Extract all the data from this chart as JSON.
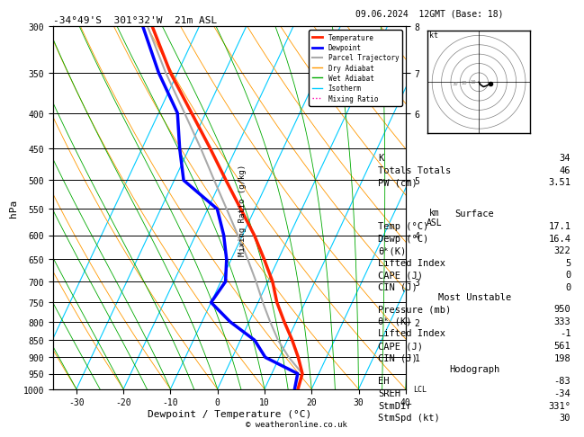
{
  "title_left": "-34°49'S  301°32'W  21m ASL",
  "title_right": "09.06.2024  12GMT (Base: 18)",
  "xlabel": "Dewpoint / Temperature (°C)",
  "ylabel_left": "hPa",
  "pressure_levels": [
    300,
    350,
    400,
    450,
    500,
    550,
    600,
    650,
    700,
    750,
    800,
    850,
    900,
    950,
    1000
  ],
  "temp_ticks": [
    -30,
    -20,
    -10,
    0,
    10,
    20,
    30,
    40
  ],
  "km_ticks": [
    1,
    2,
    3,
    4,
    5,
    6,
    7,
    8
  ],
  "km_pressures": [
    900,
    800,
    700,
    600,
    500,
    400,
    350,
    300
  ],
  "mixing_ratios": [
    1,
    2,
    3,
    4,
    5,
    6,
    8,
    10,
    15,
    20,
    25
  ],
  "mixing_ratio_labels": [
    1,
    2,
    3,
    4,
    5,
    8,
    10,
    15,
    20,
    25
  ],
  "bg_color": "#ffffff",
  "isotherm_color": "#00ccff",
  "dryadiabat_color": "#ff9900",
  "wetadiabat_color": "#00aa00",
  "mixingratio_color": "#ff00aa",
  "temp_color": "#ff2200",
  "dewp_color": "#0000ff",
  "parcel_color": "#aaaaaa",
  "info_panel": {
    "K": 34,
    "Totals_Totals": 46,
    "PW_cm": 3.51,
    "Surface_Temp": 17.1,
    "Surface_Dewp": 16.4,
    "theta_e_surface": 322,
    "Lifted_Index_surface": 5,
    "CAPE_surface": 0,
    "CIN_surface": 0,
    "MU_Pressure_mb": 950,
    "MU_theta_e": 333,
    "MU_Lifted_Index": -1,
    "MU_CAPE": 561,
    "MU_CIN": 198,
    "EH": -83,
    "SREH": -34,
    "StmDir": 331,
    "StmSpd_kt": 30
  },
  "temperature_profile": {
    "pressure": [
      1000,
      950,
      900,
      850,
      800,
      750,
      700,
      650,
      600,
      550,
      500,
      450,
      400,
      350,
      300
    ],
    "temp": [
      17.1,
      16.5,
      14.0,
      11.0,
      7.5,
      4.0,
      1.0,
      -3.0,
      -7.5,
      -13.0,
      -19.0,
      -25.5,
      -33.0,
      -41.5,
      -50.0
    ]
  },
  "dewpoint_profile": {
    "pressure": [
      1000,
      950,
      900,
      850,
      800,
      750,
      700,
      650,
      600,
      550,
      500,
      450,
      400,
      350,
      300
    ],
    "temp": [
      16.4,
      15.5,
      7.0,
      3.0,
      -4.0,
      -10.0,
      -9.0,
      -11.0,
      -14.0,
      -18.0,
      -28.0,
      -32.0,
      -36.0,
      -44.0,
      -52.0
    ]
  },
  "parcel_profile": {
    "pressure": [
      950,
      900,
      850,
      800,
      750,
      700,
      650,
      600,
      550,
      500,
      450,
      400,
      350,
      300
    ],
    "temp": [
      16.5,
      12.0,
      8.0,
      4.5,
      1.0,
      -2.5,
      -6.5,
      -11.0,
      -16.0,
      -21.5,
      -27.5,
      -34.5,
      -42.5,
      -51.0
    ]
  },
  "copyright": "© weatheronline.co.uk"
}
